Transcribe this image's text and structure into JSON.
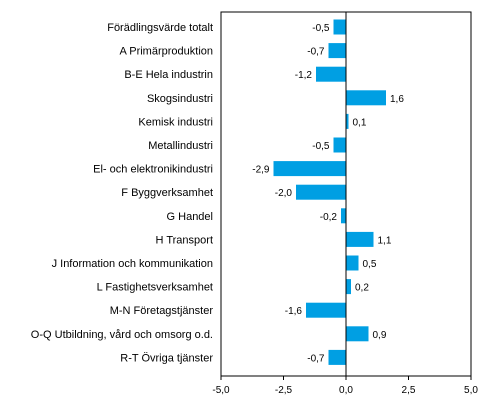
{
  "chart_data": {
    "type": "bar",
    "orientation": "horizontal",
    "title": "",
    "xlabel": "",
    "ylabel": "",
    "categories": [
      "Förädlingsvärde totalt",
      "A Primärproduktion",
      "B-E Hela industrin",
      "Skogsindustri",
      "Kemisk industri",
      "Metallindustri",
      "El- och elektronikindustri",
      "F Byggverksamhet",
      "G Handel",
      "H Transport",
      "J Information och kommunikation",
      "L Fastighetsverksamhet",
      "M-N Företagstjänster",
      "O-Q Utbildning, vård och omsorg o.d.",
      "R-T Övriga tjänster"
    ],
    "values": [
      -0.5,
      -0.7,
      -1.2,
      1.6,
      0.1,
      -0.5,
      -2.9,
      -2.0,
      -0.2,
      1.1,
      0.5,
      0.2,
      -1.6,
      0.9,
      -0.7
    ],
    "value_labels": [
      "-0,5",
      "-0,7",
      "-1,2",
      "1,6",
      "0,1",
      "-0,5",
      "-2,9",
      "-2,0",
      "-0,2",
      "1,1",
      "0,5",
      "0,2",
      "-1,6",
      "0,9",
      "-0,7"
    ],
    "xlim": [
      -5.0,
      5.0
    ],
    "xticks": [
      -5.0,
      -2.5,
      0.0,
      2.5,
      5.0
    ],
    "xtick_labels": [
      "-5,0",
      "-2,5",
      "0,0",
      "2,5",
      "5,0"
    ],
    "grid": false,
    "legend": "none",
    "colors": {
      "bar": "#009fe3",
      "axis": "#000000",
      "frame": "#000000"
    }
  }
}
